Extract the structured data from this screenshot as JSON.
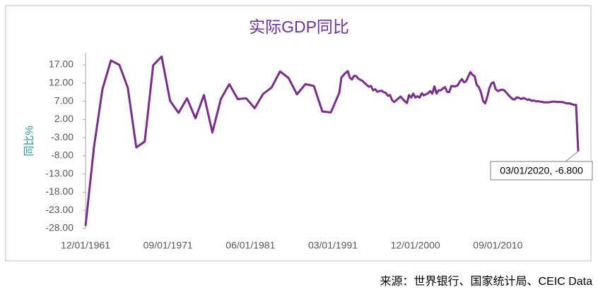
{
  "chart_data": {
    "type": "line",
    "title": "实际GDP同比",
    "y_label": "同比%",
    "source": "来源：世界银行、国家统计局、CEIC Data",
    "annotation": "03/01/2020, -6.800",
    "color": "#7b2c8c",
    "x": [
      "12/01/1961",
      "12/01/1962",
      "12/01/1963",
      "12/01/1964",
      "12/01/1965",
      "12/01/1966",
      "12/01/1967",
      "12/01/1968",
      "12/01/1969",
      "12/01/1970",
      "12/01/1971",
      "12/01/1972",
      "12/01/1973",
      "12/01/1974",
      "12/01/1975",
      "12/01/1976",
      "12/01/1977",
      "12/01/1978",
      "12/01/1979",
      "12/01/1980",
      "12/01/1981",
      "12/01/1982",
      "12/01/1983",
      "12/01/1984",
      "12/01/1985",
      "12/01/1986",
      "12/01/1987",
      "12/01/1988",
      "12/01/1989",
      "12/01/1990",
      "12/01/1991",
      "03/01/1992",
      "06/01/1992",
      "09/01/1992",
      "12/01/1992",
      "03/01/1993",
      "06/01/1993",
      "09/01/1993",
      "12/01/1993",
      "03/01/1994",
      "06/01/1994",
      "09/01/1994",
      "12/01/1994",
      "03/01/1995",
      "06/01/1995",
      "09/01/1995",
      "12/01/1995",
      "03/01/1996",
      "06/01/1996",
      "09/01/1996",
      "12/01/1996",
      "03/01/1997",
      "06/01/1997",
      "09/01/1997",
      "12/01/1997",
      "03/01/1998",
      "06/01/1998",
      "09/01/1998",
      "12/01/1998",
      "03/01/1999",
      "06/01/1999",
      "09/01/1999",
      "12/01/1999",
      "03/01/2000",
      "06/01/2000",
      "09/01/2000",
      "12/01/2000",
      "03/01/2001",
      "06/01/2001",
      "09/01/2001",
      "12/01/2001",
      "03/01/2002",
      "06/01/2002",
      "09/01/2002",
      "12/01/2002",
      "03/01/2003",
      "06/01/2003",
      "09/01/2003",
      "12/01/2003",
      "03/01/2004",
      "06/01/2004",
      "09/01/2004",
      "12/01/2004",
      "03/01/2005",
      "06/01/2005",
      "09/01/2005",
      "12/01/2005",
      "03/01/2006",
      "06/01/2006",
      "09/01/2006",
      "12/01/2006",
      "03/01/2007",
      "06/01/2007",
      "09/01/2007",
      "12/01/2007",
      "03/01/2008",
      "06/01/2008",
      "09/01/2008",
      "12/01/2008",
      "03/01/2009",
      "06/01/2009",
      "09/01/2009",
      "12/01/2009",
      "03/01/2010",
      "06/01/2010",
      "09/01/2010",
      "12/01/2010",
      "03/01/2011",
      "06/01/2011",
      "09/01/2011",
      "12/01/2011",
      "03/01/2012",
      "06/01/2012",
      "09/01/2012",
      "12/01/2012",
      "03/01/2013",
      "06/01/2013",
      "09/01/2013",
      "12/01/2013",
      "03/01/2014",
      "06/01/2014",
      "09/01/2014",
      "12/01/2014",
      "03/01/2015",
      "06/01/2015",
      "09/01/2015",
      "12/01/2015",
      "03/01/2016",
      "06/01/2016",
      "09/01/2016",
      "12/01/2016",
      "03/01/2017",
      "06/01/2017",
      "09/01/2017",
      "12/01/2017",
      "03/01/2018",
      "06/01/2018",
      "09/01/2018",
      "12/01/2018",
      "03/01/2019",
      "06/01/2019",
      "09/01/2019",
      "12/01/2019",
      "03/01/2020"
    ],
    "values": [
      -27.3,
      -5.6,
      10.3,
      18.2,
      17.0,
      10.7,
      -5.7,
      -4.1,
      16.9,
      19.3,
      7.1,
      3.8,
      7.8,
      2.3,
      8.7,
      -1.6,
      7.6,
      11.7,
      7.6,
      7.8,
      5.1,
      9.0,
      10.8,
      15.2,
      13.4,
      8.9,
      11.7,
      11.2,
      4.2,
      3.9,
      9.3,
      13.5,
      14.2,
      14.8,
      15.3,
      13.5,
      13.0,
      14.0,
      13.9,
      13.2,
      12.9,
      12.6,
      12.0,
      11.5,
      11.0,
      11.2,
      10.0,
      10.3,
      9.6,
      9.8,
      9.9,
      9.5,
      9.3,
      8.5,
      8.7,
      7.3,
      6.8,
      7.3,
      7.8,
      8.3,
      7.6,
      7.0,
      6.5,
      8.7,
      8.0,
      9.1,
      8.0,
      8.4,
      8.0,
      9.2,
      8.6,
      8.9,
      9.2,
      9.8,
      9.1,
      11.1,
      9.1,
      10.0,
      10.0,
      10.5,
      10.9,
      9.6,
      9.5,
      11.2,
      11.1,
      11.1,
      11.4,
      12.4,
      13.1,
      12.2,
      12.5,
      13.8,
      15.0,
      14.3,
      13.9,
      11.5,
      10.9,
      9.5,
      7.1,
      6.4,
      8.2,
      10.6,
      11.9,
      12.2,
      10.3,
      9.8,
      10.0,
      10.2,
      10.0,
      9.4,
      8.7,
      8.1,
      7.6,
      7.5,
      8.1,
      7.9,
      7.6,
      7.9,
      7.7,
      7.4,
      7.5,
      7.1,
      7.2,
      7.0,
      7.0,
      6.9,
      6.8,
      6.7,
      6.7,
      6.7,
      6.8,
      6.9,
      6.9,
      6.8,
      6.8,
      6.8,
      6.7,
      6.5,
      6.4,
      6.4,
      6.2,
      6.0,
      6.0,
      -6.8
    ],
    "xlim": [
      "12/01/1961",
      "03/01/2020"
    ],
    "xticks": [
      "12/01/1961",
      "09/01/1971",
      "06/01/1981",
      "03/01/1991",
      "12/01/2000",
      "09/01/2010"
    ],
    "ylim": [
      -28,
      20.3
    ],
    "yticks": [
      {
        "value": 17,
        "label": "17.00"
      },
      {
        "value": 12,
        "label": "12.00"
      },
      {
        "value": 7,
        "label": "7.00"
      },
      {
        "value": 2,
        "label": "2.00"
      },
      {
        "value": -3,
        "label": "-3.00"
      },
      {
        "value": -8,
        "label": "-8.00"
      },
      {
        "value": -13,
        "label": "-13.00"
      },
      {
        "value": -18,
        "label": "-18.00"
      },
      {
        "value": -23,
        "label": "-23.00"
      },
      {
        "value": -28,
        "label": "-28.00"
      }
    ]
  }
}
